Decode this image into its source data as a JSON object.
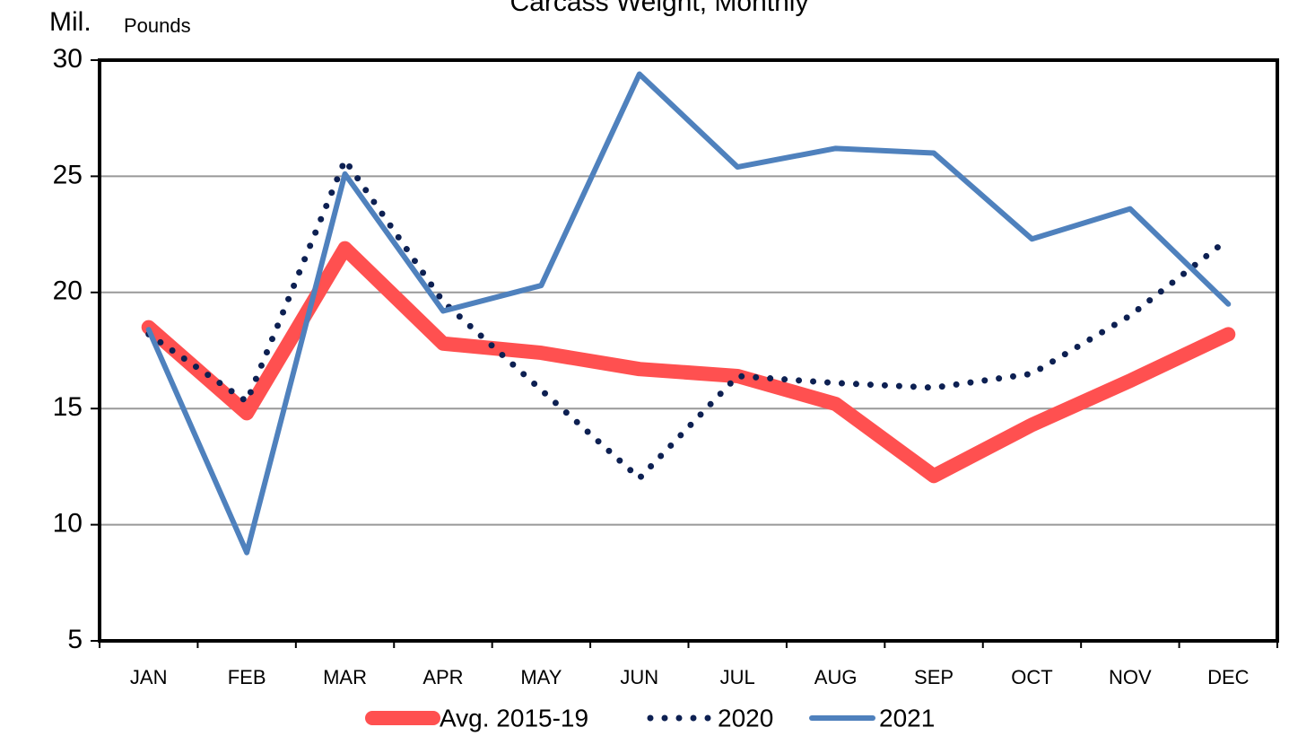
{
  "chart_data": {
    "type": "line",
    "title": "Carcass Weight, Monthly",
    "ylabel_main": "Mil.",
    "ylabel_sub": "Pounds",
    "categories": [
      "JAN",
      "FEB",
      "MAR",
      "APR",
      "MAY",
      "JUN",
      "JUL",
      "AUG",
      "SEP",
      "OCT",
      "NOV",
      "DEC"
    ],
    "series": [
      {
        "name": "Avg. 2015-19",
        "color": "#ff5050",
        "style": "thick",
        "values": [
          18.5,
          14.8,
          21.9,
          17.8,
          17.4,
          16.7,
          16.4,
          15.2,
          12.1,
          14.3,
          16.2,
          18.2
        ]
      },
      {
        "name": "2020",
        "color": "#0d2052",
        "style": "dotted",
        "values": [
          18.2,
          15.3,
          25.7,
          19.6,
          15.8,
          12.0,
          16.4,
          16.1,
          15.9,
          16.5,
          19.0,
          22.3
        ]
      },
      {
        "name": "2021",
        "color": "#4f81bd",
        "style": "solid",
        "values": [
          18.4,
          8.8,
          25.1,
          19.2,
          20.3,
          29.4,
          25.4,
          26.2,
          26.0,
          22.3,
          23.6,
          19.5
        ]
      }
    ],
    "ylim": [
      5,
      30
    ],
    "yticks": [
      5,
      10,
      15,
      20,
      25,
      30
    ],
    "grid": true,
    "legend": "bottom"
  }
}
